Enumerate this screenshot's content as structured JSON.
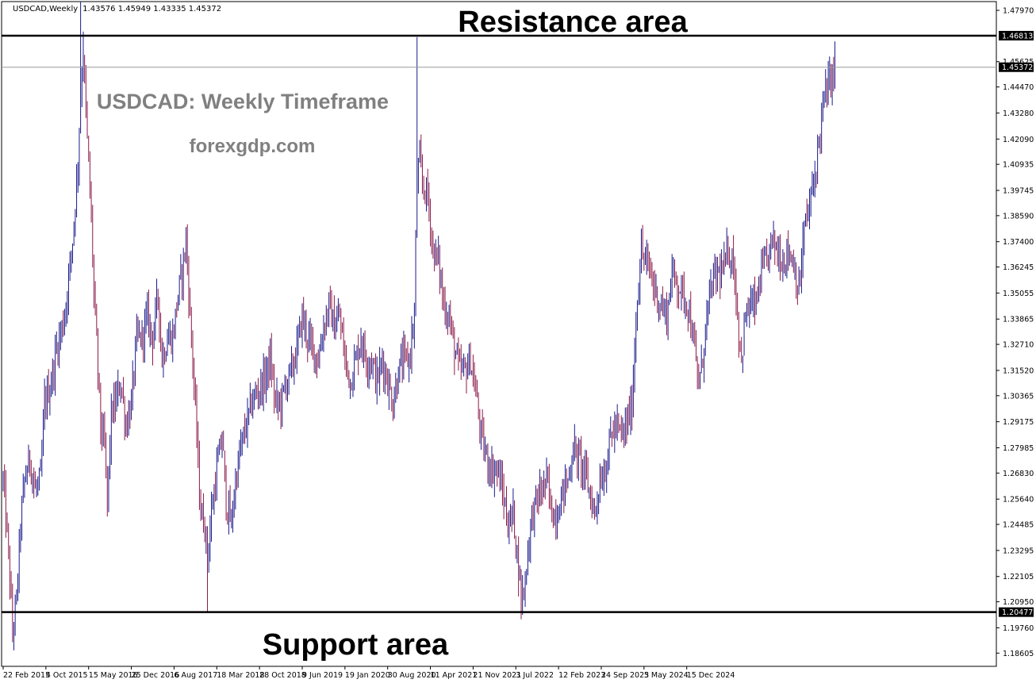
{
  "header": {
    "symbol": "USDCAD,Weekly",
    "ohlc": "1.43576 1.45949 1.43335 1.45372"
  },
  "annotations": {
    "resistance": "Resistance area",
    "support": "Support area",
    "watermark_title": "USDCAD: Weekly Timeframe",
    "watermark_site": "forexgdp.com"
  },
  "levels": {
    "resistance_value": 1.46813,
    "resistance_label": "1.46813",
    "support_value": 1.20477,
    "support_label": "1.20477",
    "current_value": 1.45372,
    "current_label": "1.45372"
  },
  "colors": {
    "up_bar": "#1a1a8c",
    "down_bar": "#8b1a4a",
    "level_line": "#000000",
    "current_line": "#9a9a9a",
    "watermark": "#808080"
  },
  "chart_data": {
    "type": "ohlc",
    "title": "",
    "ylim": [
      1.18,
      1.4837
    ],
    "y_ticks": [
      "1.47970",
      "1.45625",
      "1.44470",
      "1.43280",
      "1.42090",
      "1.40935",
      "1.39745",
      "1.38590",
      "1.37400",
      "1.36245",
      "1.35055",
      "1.33865",
      "1.32710",
      "1.31520",
      "1.30365",
      "1.29175",
      "1.27985",
      "1.26830",
      "1.25640",
      "1.24485",
      "1.23295",
      "1.22105",
      "1.20950",
      "1.19760",
      "1.18605"
    ],
    "x_ticks": [
      "22 Feb 2015",
      "4 Oct 2015",
      "15 May 2016",
      "25 Dec 2016",
      "6 Aug 2017",
      "18 Mar 2018",
      "28 Oct 2018",
      "9 Jun 2019",
      "19 Jan 2020",
      "30 Aug 2020",
      "11 Apr 2021",
      "21 Nov 2021",
      "3 Jul 2022",
      "12 Feb 2023",
      "24 Sep 2023",
      "5 May 2024",
      "15 Dec 2024"
    ],
    "bars_per_tick": 32,
    "path_comment": "",
    "path": [
      [
        0,
        1.265
      ],
      [
        3,
        1.24
      ],
      [
        5,
        1.22
      ],
      [
        7,
        1.195
      ],
      [
        10,
        1.21
      ],
      [
        13,
        1.245
      ],
      [
        16,
        1.265
      ],
      [
        20,
        1.275
      ],
      [
        24,
        1.26
      ],
      [
        28,
        1.265
      ],
      [
        31,
        1.3
      ],
      [
        36,
        1.31
      ],
      [
        40,
        1.325
      ],
      [
        46,
        1.34
      ],
      [
        52,
        1.375
      ],
      [
        56,
        1.41
      ],
      [
        58,
        1.445
      ],
      [
        60,
        1.46
      ],
      [
        63,
        1.42
      ],
      [
        66,
        1.385
      ],
      [
        68,
        1.35
      ],
      [
        71,
        1.315
      ],
      [
        73,
        1.29
      ],
      [
        76,
        1.28
      ],
      [
        78,
        1.255
      ],
      [
        81,
        1.295
      ],
      [
        84,
        1.3
      ],
      [
        88,
        1.31
      ],
      [
        92,
        1.29
      ],
      [
        96,
        1.3
      ],
      [
        100,
        1.33
      ],
      [
        104,
        1.33
      ],
      [
        108,
        1.34
      ],
      [
        112,
        1.33
      ],
      [
        116,
        1.35
      ],
      [
        119,
        1.32
      ],
      [
        123,
        1.33
      ],
      [
        127,
        1.33
      ],
      [
        131,
        1.35
      ],
      [
        134,
        1.36
      ],
      [
        137,
        1.375
      ],
      [
        140,
        1.34
      ],
      [
        142,
        1.32
      ],
      [
        145,
        1.285
      ],
      [
        148,
        1.25
      ],
      [
        151,
        1.245
      ],
      [
        153,
        1.23
      ],
      [
        156,
        1.25
      ],
      [
        160,
        1.27
      ],
      [
        164,
        1.285
      ],
      [
        167,
        1.255
      ],
      [
        171,
        1.245
      ],
      [
        174,
        1.265
      ],
      [
        178,
        1.28
      ],
      [
        182,
        1.29
      ],
      [
        186,
        1.3
      ],
      [
        190,
        1.305
      ],
      [
        195,
        1.31
      ],
      [
        200,
        1.32
      ],
      [
        204,
        1.3
      ],
      [
        208,
        1.3
      ],
      [
        212,
        1.31
      ],
      [
        216,
        1.315
      ],
      [
        220,
        1.325
      ],
      [
        224,
        1.34
      ],
      [
        228,
        1.33
      ],
      [
        232,
        1.325
      ],
      [
        236,
        1.32
      ],
      [
        240,
        1.335
      ],
      [
        244,
        1.345
      ],
      [
        248,
        1.335
      ],
      [
        252,
        1.34
      ],
      [
        256,
        1.32
      ],
      [
        260,
        1.31
      ],
      [
        264,
        1.32
      ],
      [
        268,
        1.33
      ],
      [
        272,
        1.32
      ],
      [
        276,
        1.32
      ],
      [
        280,
        1.31
      ],
      [
        284,
        1.32
      ],
      [
        288,
        1.31
      ],
      [
        292,
        1.3
      ],
      [
        296,
        1.315
      ],
      [
        300,
        1.32
      ],
      [
        304,
        1.32
      ],
      [
        308,
        1.34
      ],
      [
        310,
        1.405
      ],
      [
        312,
        1.41
      ],
      [
        314,
        1.4
      ],
      [
        318,
        1.395
      ],
      [
        322,
        1.37
      ],
      [
        326,
        1.365
      ],
      [
        330,
        1.345
      ],
      [
        334,
        1.34
      ],
      [
        338,
        1.325
      ],
      [
        342,
        1.315
      ],
      [
        346,
        1.315
      ],
      [
        350,
        1.32
      ],
      [
        354,
        1.305
      ],
      [
        358,
        1.285
      ],
      [
        362,
        1.275
      ],
      [
        366,
        1.27
      ],
      [
        370,
        1.27
      ],
      [
        374,
        1.26
      ],
      [
        378,
        1.245
      ],
      [
        382,
        1.25
      ],
      [
        386,
        1.225
      ],
      [
        388,
        1.21
      ],
      [
        391,
        1.22
      ],
      [
        395,
        1.245
      ],
      [
        399,
        1.255
      ],
      [
        403,
        1.26
      ],
      [
        407,
        1.265
      ],
      [
        411,
        1.25
      ],
      [
        415,
        1.25
      ],
      [
        419,
        1.26
      ],
      [
        423,
        1.265
      ],
      [
        427,
        1.28
      ],
      [
        431,
        1.275
      ],
      [
        435,
        1.27
      ],
      [
        439,
        1.26
      ],
      [
        443,
        1.25
      ],
      [
        447,
        1.265
      ],
      [
        451,
        1.27
      ],
      [
        455,
        1.285
      ],
      [
        459,
        1.29
      ],
      [
        463,
        1.285
      ],
      [
        467,
        1.29
      ],
      [
        471,
        1.3
      ],
      [
        475,
        1.35
      ],
      [
        478,
        1.37
      ],
      [
        481,
        1.365
      ],
      [
        485,
        1.36
      ],
      [
        489,
        1.35
      ],
      [
        493,
        1.345
      ],
      [
        497,
        1.34
      ],
      [
        501,
        1.36
      ],
      [
        505,
        1.355
      ],
      [
        509,
        1.35
      ],
      [
        513,
        1.345
      ],
      [
        517,
        1.33
      ],
      [
        520,
        1.31
      ],
      [
        523,
        1.315
      ],
      [
        527,
        1.34
      ],
      [
        531,
        1.355
      ],
      [
        535,
        1.36
      ],
      [
        539,
        1.36
      ],
      [
        543,
        1.37
      ],
      [
        547,
        1.365
      ],
      [
        550,
        1.34
      ],
      [
        553,
        1.32
      ],
      [
        556,
        1.34
      ],
      [
        560,
        1.345
      ],
      [
        564,
        1.345
      ],
      [
        568,
        1.36
      ],
      [
        572,
        1.365
      ],
      [
        576,
        1.375
      ],
      [
        580,
        1.37
      ],
      [
        584,
        1.365
      ],
      [
        588,
        1.37
      ],
      [
        592,
        1.365
      ],
      [
        596,
        1.35
      ],
      [
        600,
        1.38
      ],
      [
        604,
        1.39
      ],
      [
        608,
        1.405
      ],
      [
        612,
        1.425
      ],
      [
        615,
        1.44
      ],
      [
        618,
        1.445
      ],
      [
        621,
        1.45
      ],
      [
        623,
        1.455
      ]
    ]
  }
}
